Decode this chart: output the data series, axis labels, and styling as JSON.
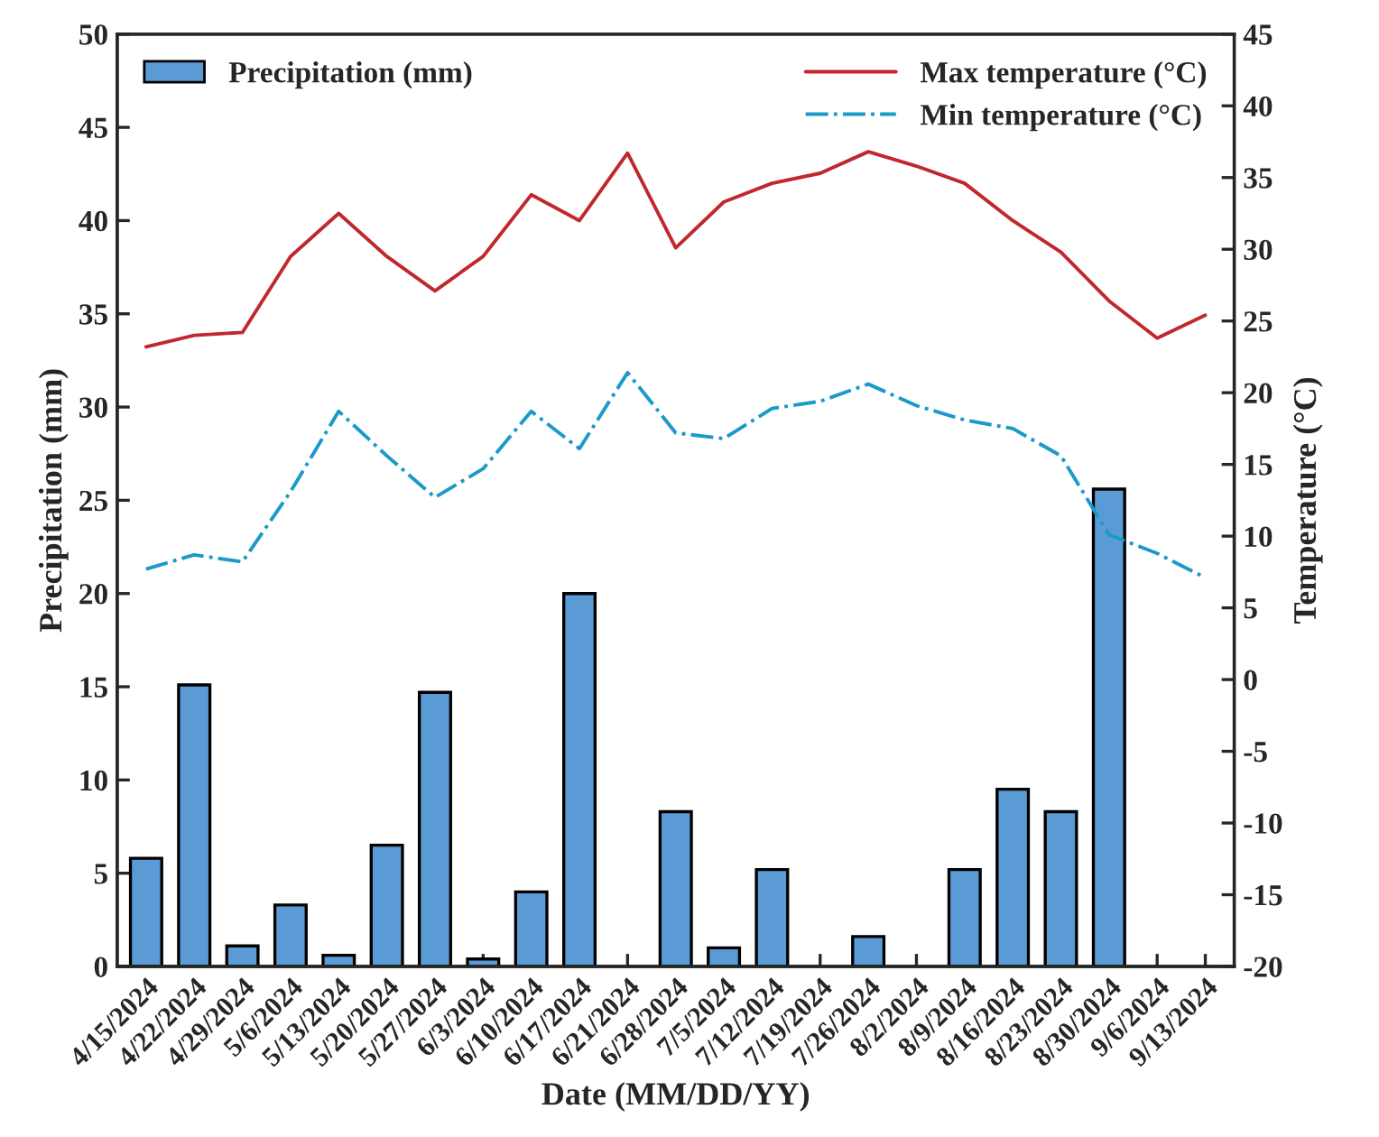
{
  "chart_data": {
    "type": "bar",
    "xlabel": "Date (MM/DD/YY)",
    "ylabel": "Precipitation (mm)",
    "y2label": "Temperature (°C)",
    "categories": [
      "4/15/2024",
      "4/22/2024",
      "4/29/2024",
      "5/6/2024",
      "5/13/2024",
      "5/20/2024",
      "5/27/2024",
      "6/3/2024",
      "6/10/2024",
      "6/17/2024",
      "6/21/2024",
      "6/28/2024",
      "7/5/2024",
      "7/12/2024",
      "7/19/2024",
      "7/26/2024",
      "8/2/2024",
      "8/9/2024",
      "8/16/2024",
      "8/23/2024",
      "8/30/2024",
      "9/6/2024",
      "9/13/2024"
    ],
    "series": [
      {
        "name": "Precipitation (mm)",
        "color": "#5b9bd5",
        "values": [
          5.8,
          15.1,
          1.1,
          3.3,
          0.6,
          6.5,
          14.7,
          0.4,
          4.0,
          20.0,
          null,
          8.3,
          1.0,
          5.2,
          null,
          1.6,
          null,
          5.2,
          9.5,
          8.3,
          25.6,
          null,
          null
        ]
      },
      {
        "name": "Max temperature (°C)",
        "type": "line",
        "axis": "y2",
        "color": "#c0282d",
        "line_style": "solid",
        "values": [
          23.2,
          24.0,
          24.2,
          29.5,
          32.5,
          29.5,
          27.1,
          29.5,
          33.8,
          32.0,
          36.7,
          30.1,
          33.3,
          34.6,
          35.3,
          36.8,
          35.8,
          34.6,
          32.0,
          29.8,
          26.4,
          23.8,
          25.4
        ]
      },
      {
        "name": "Min temperature (°C)",
        "type": "line",
        "axis": "y2",
        "color": "#1a9ac8",
        "line_style": "dashdot",
        "values": [
          7.7,
          8.7,
          8.2,
          13.1,
          18.7,
          15.6,
          12.7,
          14.7,
          18.7,
          16.1,
          21.4,
          17.2,
          16.8,
          18.9,
          19.4,
          20.6,
          19.1,
          18.1,
          17.5,
          15.6,
          10.1,
          8.8,
          7.1
        ]
      }
    ],
    "ylim": [
      0,
      50
    ],
    "yticks": [
      0,
      5,
      10,
      15,
      20,
      25,
      30,
      35,
      40,
      45,
      50
    ],
    "y2lim": [
      -20,
      45
    ],
    "y2ticks": [
      -20,
      -15,
      -10,
      -5,
      0,
      5,
      10,
      15,
      20,
      25,
      30,
      35,
      40,
      45
    ],
    "legend": "top",
    "grid": false
  }
}
